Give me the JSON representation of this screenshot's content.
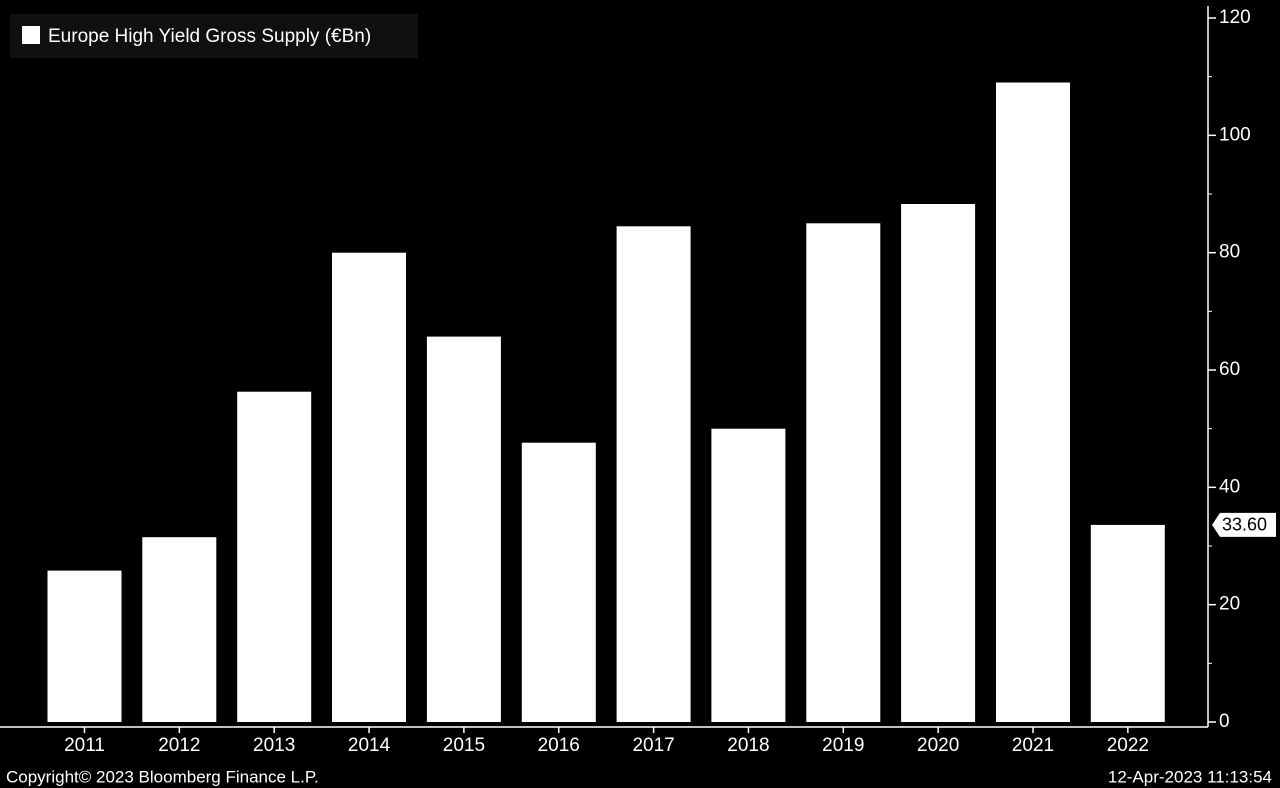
{
  "chart_data": {
    "type": "bar",
    "series": [
      {
        "name": "Europe High Yield Gross Supply (€Bn)",
        "values": [
          25.8,
          31.5,
          56.3,
          80.0,
          65.7,
          47.6,
          84.5,
          50.0,
          85.0,
          88.3,
          109.0,
          33.6
        ]
      }
    ],
    "categories": [
      "2011",
      "2012",
      "2013",
      "2014",
      "2015",
      "2016",
      "2017",
      "2018",
      "2019",
      "2020",
      "2021",
      "2022"
    ],
    "ylim": [
      0,
      120
    ],
    "yticks": [
      0,
      20,
      40,
      60,
      80,
      100,
      120
    ],
    "minor_yticks": [
      10,
      30,
      50,
      70,
      90,
      110
    ],
    "y_axis_side": "right",
    "grid": false,
    "legend_position": "top-left",
    "last_value_label": "33.60",
    "colors": {
      "background": "#000000",
      "bar": "#ffffff",
      "text": "#ffffff",
      "legend_box": "#101010"
    }
  },
  "footer": {
    "copyright": "Copyright© 2023 Bloomberg Finance L.P.",
    "timestamp": "12-Apr-2023 11:13:54"
  }
}
